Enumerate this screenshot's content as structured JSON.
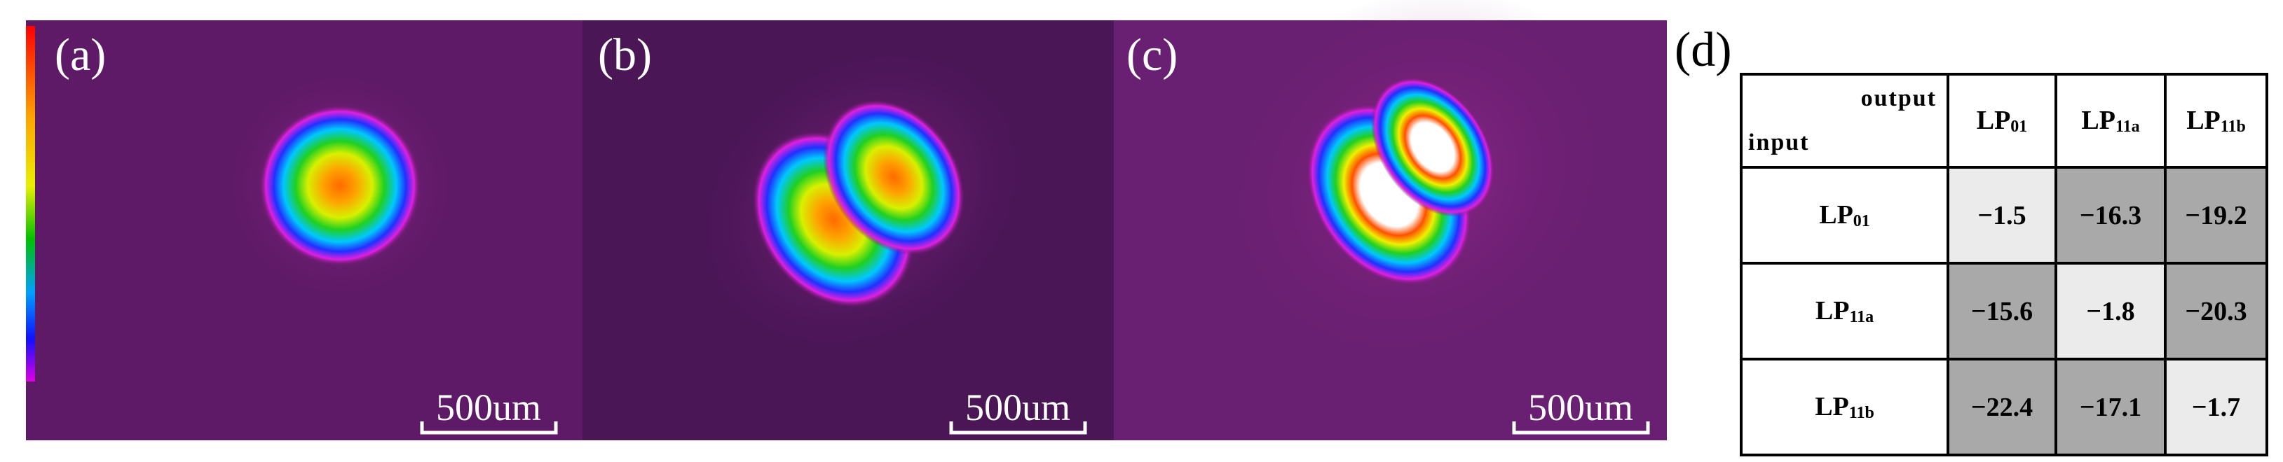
{
  "panels": [
    {
      "label": "(a)",
      "scale_bar": "500um"
    },
    {
      "label": "(b)",
      "scale_bar": "500um"
    },
    {
      "label": "(c)",
      "scale_bar": "500um"
    }
  ],
  "table": {
    "label": "(d)",
    "corner": {
      "top": "output",
      "bottom": "input"
    },
    "columns": [
      {
        "base": "LP",
        "sub": "01"
      },
      {
        "base": "LP",
        "sub": "11a"
      },
      {
        "base": "LP",
        "sub": "11b"
      }
    ],
    "rows": [
      {
        "head": {
          "base": "LP",
          "sub": "01"
        },
        "cells": [
          "−1.5",
          "−16.3",
          "−19.2"
        ]
      },
      {
        "head": {
          "base": "LP",
          "sub": "11a"
        },
        "cells": [
          "−15.6",
          "−1.8",
          "−20.3"
        ]
      },
      {
        "head": {
          "base": "LP",
          "sub": "11b"
        },
        "cells": [
          "−22.4",
          "−17.1",
          "−1.7"
        ]
      }
    ]
  }
}
